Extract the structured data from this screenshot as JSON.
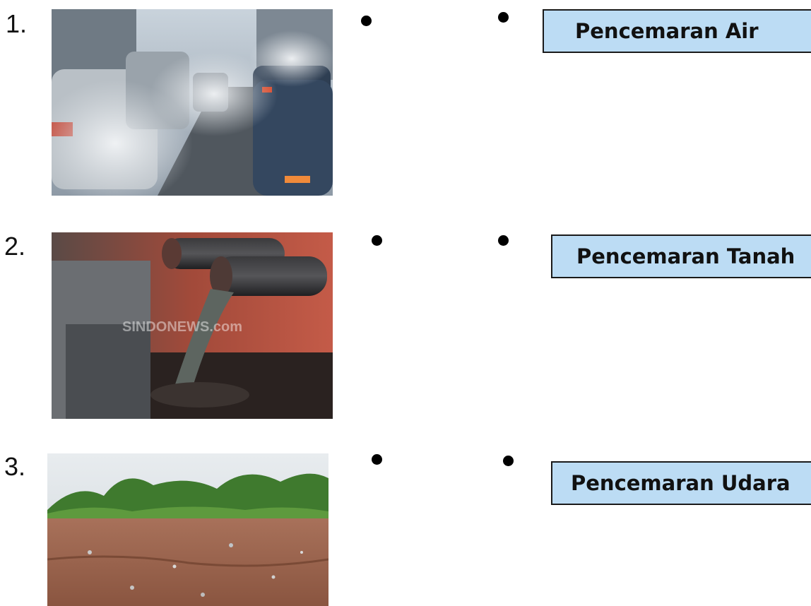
{
  "items": [
    {
      "number": "1.",
      "image_desc": "traffic-exhaust-photo"
    },
    {
      "number": "2.",
      "image_desc": "sewage-pipe-photo",
      "watermark": "SINDONEWS.com"
    },
    {
      "number": "3.",
      "image_desc": "polluted-soil-photo"
    }
  ],
  "answers": [
    {
      "label": "Pencemaran Air"
    },
    {
      "label": "Pencemaran Tanah"
    },
    {
      "label": "Pencemaran Udara"
    }
  ],
  "colors": {
    "answer_bg": "#bcdcf4",
    "border": "#1a1a1a",
    "dot": "#000000"
  }
}
